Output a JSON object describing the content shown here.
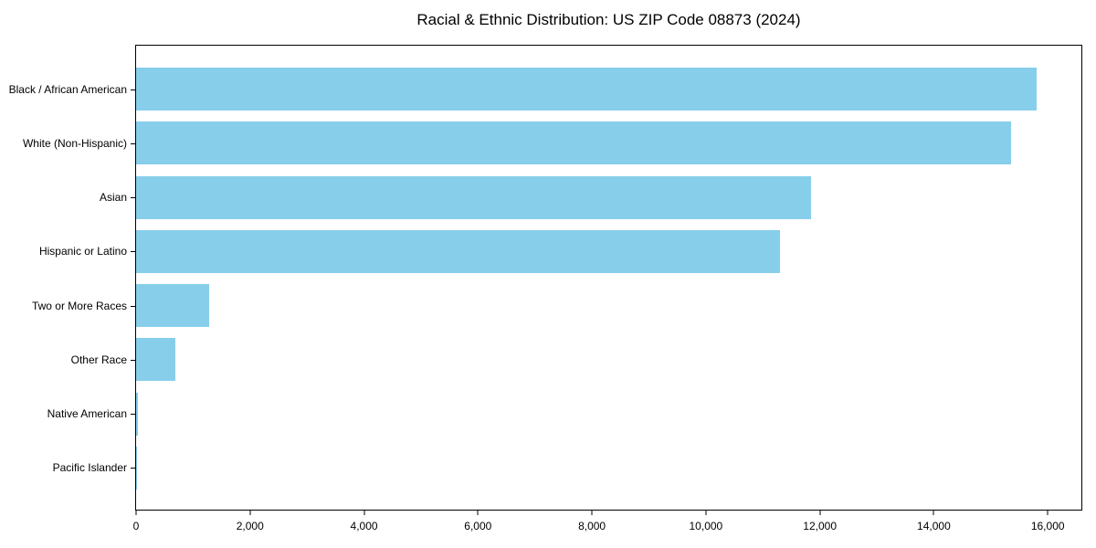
{
  "title": "Racial & Ethnic Distribution: US ZIP Code 08873 (2024)",
  "colors": {
    "bar": "#87CEEB",
    "axis": "#000000",
    "background": "#FFFFFF",
    "text": "#000000"
  },
  "chart_data": {
    "type": "bar",
    "orientation": "horizontal",
    "title": "Racial & Ethnic Distribution: US ZIP Code 08873 (2024)",
    "xlabel": "",
    "ylabel": "",
    "categories": [
      "Black / African American",
      "White (Non-Hispanic)",
      "Asian",
      "Hispanic or Latino",
      "Two or More Races",
      "Other Race",
      "Native American",
      "Pacific Islander"
    ],
    "values": [
      15800,
      15350,
      11850,
      11300,
      1280,
      690,
      30,
      10
    ],
    "xlim": [
      0,
      16590
    ],
    "x_ticks": [
      0,
      2000,
      4000,
      6000,
      8000,
      10000,
      12000,
      14000,
      16000
    ],
    "x_tick_labels": [
      "0",
      "2,000",
      "4,000",
      "6,000",
      "8,000",
      "10,000",
      "12,000",
      "14,000",
      "16,000"
    ],
    "grid": false,
    "legend": null,
    "bar_color": "#87CEEB"
  }
}
